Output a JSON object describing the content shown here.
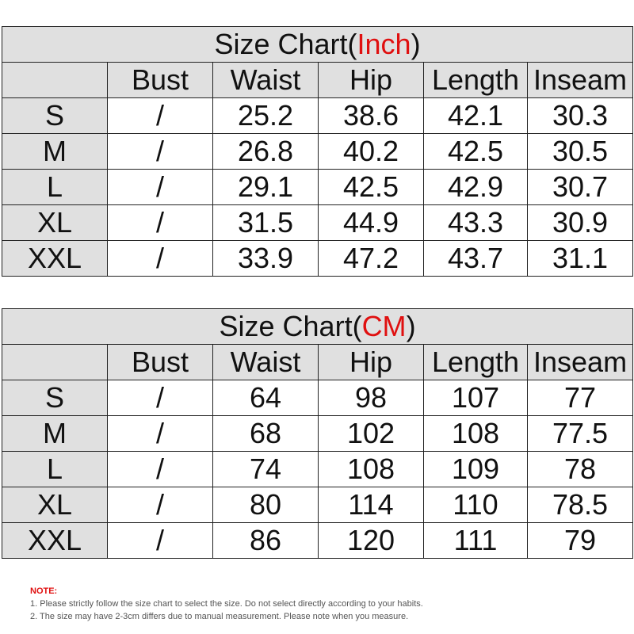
{
  "tables": [
    {
      "title": {
        "prefix": "Size Chart(",
        "unit": "Inch",
        "suffix": ")"
      },
      "headers": [
        "Bust",
        "Waist",
        "Hip",
        "Length",
        "Inseam"
      ],
      "rows": [
        {
          "size": "S",
          "values": [
            "/",
            "25.2",
            "38.6",
            "42.1",
            "30.3"
          ]
        },
        {
          "size": "M",
          "values": [
            "/",
            "26.8",
            "40.2",
            "42.5",
            "30.5"
          ]
        },
        {
          "size": "L",
          "values": [
            "/",
            "29.1",
            "42.5",
            "42.9",
            "30.7"
          ]
        },
        {
          "size": "XL",
          "values": [
            "/",
            "31.5",
            "44.9",
            "43.3",
            "30.9"
          ]
        },
        {
          "size": "XXL",
          "values": [
            "/",
            "33.9",
            "47.2",
            "43.7",
            "31.1"
          ]
        }
      ]
    },
    {
      "title": {
        "prefix": "Size Chart(",
        "unit": "CM",
        "suffix": ")"
      },
      "headers": [
        "Bust",
        "Waist",
        "Hip",
        "Length",
        "Inseam"
      ],
      "rows": [
        {
          "size": "S",
          "values": [
            "/",
            "64",
            "98",
            "107",
            "77"
          ]
        },
        {
          "size": "M",
          "values": [
            "/",
            "68",
            "102",
            "108",
            "77.5"
          ]
        },
        {
          "size": "L",
          "values": [
            "/",
            "74",
            "108",
            "109",
            "78"
          ]
        },
        {
          "size": "XL",
          "values": [
            "/",
            "80",
            "114",
            "110",
            "78.5"
          ]
        },
        {
          "size": "XXL",
          "values": [
            "/",
            "86",
            "120",
            "111",
            "79"
          ]
        }
      ]
    }
  ],
  "notes": {
    "heading": "NOTE:",
    "lines": [
      "1. Please strictly follow the size chart  to select the size. Do not select directly according to your habits.",
      "2. The size may have 2-3cm differs due to manual measurement. Please note when you measure."
    ]
  }
}
